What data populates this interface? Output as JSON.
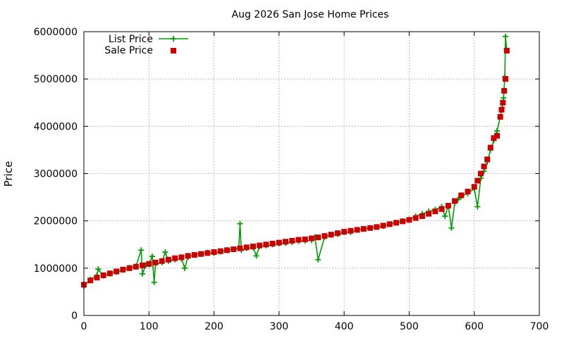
{
  "chart_data": {
    "type": "scatter",
    "title": "Aug 2026 San Jose Home Prices",
    "xlabel": "",
    "ylabel": "Price",
    "xlim": [
      0,
      700
    ],
    "ylim": [
      0,
      6000000
    ],
    "xticks": [
      0,
      100,
      200,
      300,
      400,
      500,
      600,
      700
    ],
    "yticks": [
      0,
      1000000,
      2000000,
      3000000,
      4000000,
      5000000,
      6000000
    ],
    "grid": true,
    "legend_position": "top-left",
    "series": [
      {
        "name": "List Price",
        "style": "line-with-plus-markers",
        "color": "#009e00",
        "x": [
          0,
          10,
          20,
          22,
          30,
          40,
          50,
          60,
          70,
          80,
          88,
          90,
          95,
          100,
          105,
          108,
          110,
          120,
          125,
          130,
          140,
          150,
          155,
          160,
          170,
          180,
          190,
          200,
          210,
          220,
          230,
          238,
          240,
          242,
          250,
          260,
          265,
          270,
          280,
          290,
          300,
          310,
          320,
          330,
          340,
          350,
          355,
          360,
          370,
          380,
          390,
          400,
          410,
          420,
          430,
          440,
          450,
          460,
          470,
          480,
          490,
          500,
          510,
          520,
          530,
          540,
          550,
          555,
          560,
          565,
          570,
          575,
          580,
          590,
          600,
          605,
          610,
          615,
          620,
          625,
          630,
          635,
          640,
          643,
          645,
          647,
          648,
          650
        ],
        "y": [
          620000,
          760000,
          850000,
          980000,
          840000,
          880000,
          920000,
          960000,
          1010000,
          1040000,
          1380000,
          880000,
          1060000,
          1080000,
          1250000,
          700000,
          1090000,
          1120000,
          1340000,
          1150000,
          1180000,
          1200000,
          1000000,
          1240000,
          1280000,
          1300000,
          1330000,
          1320000,
          1350000,
          1380000,
          1400000,
          1420000,
          1940000,
          1380000,
          1420000,
          1440000,
          1260000,
          1460000,
          1480000,
          1500000,
          1520000,
          1530000,
          1550000,
          1570000,
          1580000,
          1590000,
          1660000,
          1180000,
          1660000,
          1700000,
          1720000,
          1760000,
          1760000,
          1810000,
          1830000,
          1850000,
          1870000,
          1890000,
          1930000,
          1960000,
          1990000,
          2030000,
          2100000,
          2150000,
          2200000,
          2240000,
          2300000,
          2100000,
          2320000,
          1850000,
          2380000,
          2450000,
          2520000,
          2580000,
          2680000,
          2300000,
          2900000,
          3050000,
          3250000,
          3500000,
          3700000,
          3900000,
          4200000,
          4400000,
          4600000,
          5050000,
          5900000,
          5600000
        ]
      },
      {
        "name": "Sale Price",
        "style": "square-markers",
        "color": "#cc0000",
        "x": [
          0,
          10,
          20,
          30,
          40,
          50,
          60,
          70,
          80,
          90,
          100,
          110,
          120,
          130,
          140,
          150,
          160,
          170,
          180,
          190,
          200,
          210,
          220,
          230,
          240,
          250,
          260,
          270,
          280,
          290,
          300,
          310,
          320,
          330,
          340,
          350,
          360,
          370,
          380,
          390,
          400,
          410,
          420,
          430,
          440,
          450,
          460,
          470,
          480,
          490,
          500,
          510,
          520,
          530,
          540,
          550,
          560,
          570,
          580,
          590,
          600,
          605,
          610,
          615,
          620,
          625,
          630,
          635,
          640,
          642,
          644,
          646,
          648,
          650
        ],
        "y": [
          650000,
          740000,
          800000,
          850000,
          890000,
          930000,
          970000,
          1000000,
          1030000,
          1060000,
          1090000,
          1120000,
          1150000,
          1180000,
          1210000,
          1230000,
          1260000,
          1280000,
          1300000,
          1320000,
          1340000,
          1360000,
          1380000,
          1400000,
          1420000,
          1440000,
          1460000,
          1480000,
          1500000,
          1520000,
          1540000,
          1560000,
          1580000,
          1600000,
          1610000,
          1630000,
          1650000,
          1680000,
          1710000,
          1740000,
          1770000,
          1790000,
          1810000,
          1830000,
          1850000,
          1870000,
          1900000,
          1930000,
          1960000,
          1990000,
          2020000,
          2060000,
          2100000,
          2150000,
          2200000,
          2250000,
          2320000,
          2420000,
          2540000,
          2620000,
          2720000,
          2850000,
          3000000,
          3150000,
          3300000,
          3550000,
          3750000,
          3800000,
          4200000,
          4350000,
          4500000,
          4750000,
          5000000,
          5600000
        ]
      }
    ]
  }
}
